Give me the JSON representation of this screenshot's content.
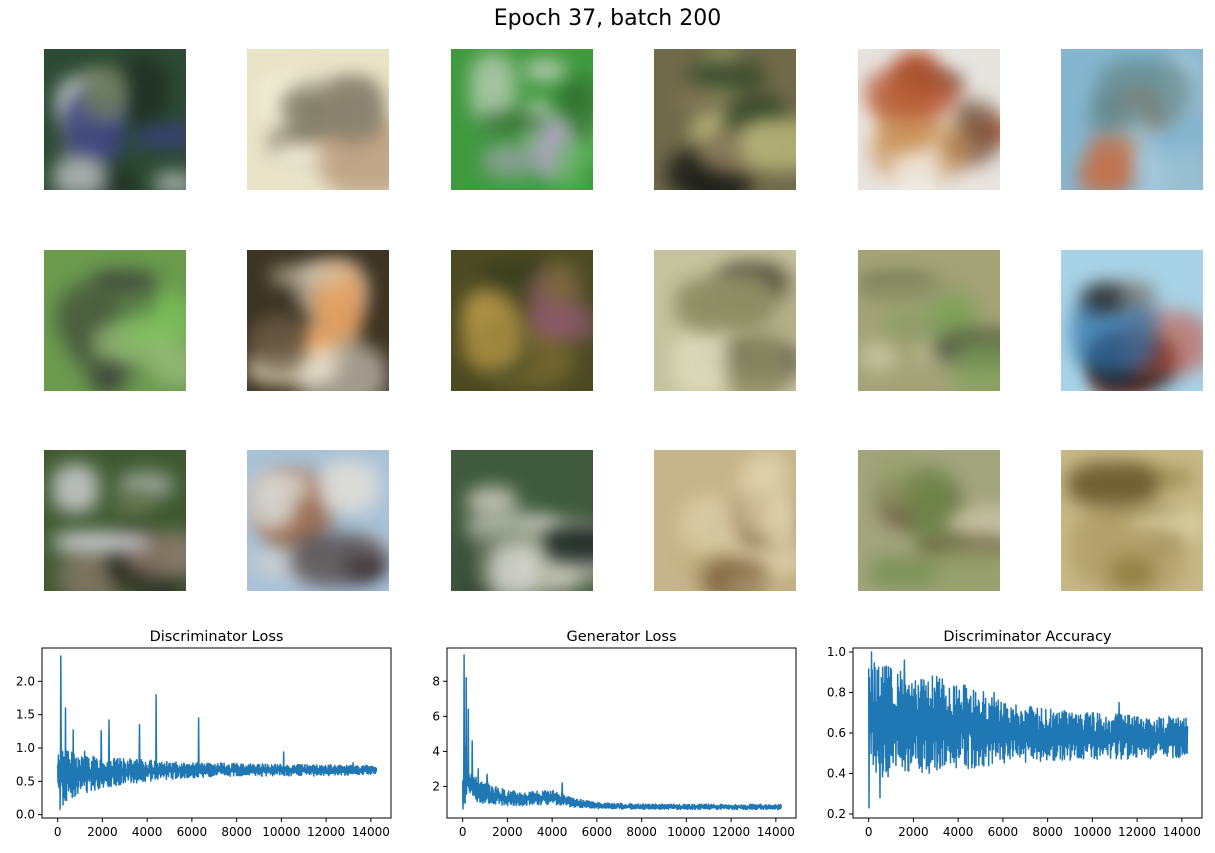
{
  "figure": {
    "suptitle": "Epoch 37, batch 200"
  },
  "sample_grid": {
    "rows": 3,
    "cols": 6,
    "samples": [
      {
        "bg": "#2d4a34",
        "colors": [
          "#e8e8ec",
          "#3b3f8a",
          "#1e2a22",
          "#6c7a5a"
        ]
      },
      {
        "bg": "#e9e4c8",
        "colors": [
          "#8a8270",
          "#f4f1dc",
          "#b89a7c",
          "#6b6a55"
        ]
      },
      {
        "bg": "#3f9a3e",
        "colors": [
          "#e9dfe4",
          "#5fb85a",
          "#2b5a2a",
          "#b3a4c4"
        ]
      },
      {
        "bg": "#6f6a4a",
        "colors": [
          "#b7b57a",
          "#1b1d18",
          "#3a4a2c",
          "#8c7d5e"
        ]
      },
      {
        "bg": "#e7e3de",
        "colors": [
          "#b4522e",
          "#6e4e36",
          "#f2efe9",
          "#c58a4a"
        ]
      },
      {
        "bg": "#86b6cf",
        "colors": [
          "#c96a3c",
          "#9fc3d0",
          "#5d7f7c",
          "#b0cde0"
        ]
      },
      {
        "bg": "#6b9a4e",
        "colors": [
          "#3a3d3a",
          "#7dc25a",
          "#4a5c3e",
          "#98b97a"
        ]
      },
      {
        "bg": "#3d3424",
        "colors": [
          "#d9cfb4",
          "#f1ece0",
          "#6a5a44",
          "#f0a45e"
        ]
      },
      {
        "bg": "#4c4a22",
        "colors": [
          "#7a6d34",
          "#2f3a1e",
          "#c1a04a",
          "#8c5a6c"
        ]
      },
      {
        "bg": "#c4c39d",
        "colors": [
          "#8d8b62",
          "#e0ddc0",
          "#3f3c2c",
          "#a9a87f"
        ]
      },
      {
        "bg": "#a3a377",
        "colors": [
          "#7ea25a",
          "#c8c6a2",
          "#4d563a",
          "#949a6c"
        ]
      },
      {
        "bg": "#a8d3e6",
        "colors": [
          "#1e1d1c",
          "#c74a35",
          "#2e6fa6",
          "#7b6a5a"
        ]
      },
      {
        "bg": "#3f5a32",
        "colors": [
          "#d7d6dc",
          "#6c7a52",
          "#2a2a22",
          "#8b7a6c"
        ]
      },
      {
        "bg": "#a8c1d6",
        "colors": [
          "#d6d4d0",
          "#9a6a4c",
          "#3a3030",
          "#e4e0d8"
        ]
      },
      {
        "bg": "#3f5a3c",
        "colors": [
          "#d9d4c8",
          "#1f2a26",
          "#7a8a6a",
          "#e6e2e0"
        ]
      },
      {
        "bg": "#c6b48a",
        "colors": [
          "#e4d9b4",
          "#7a5e3c",
          "#b7a878",
          "#d9cfa8"
        ]
      },
      {
        "bg": "#a2a47e",
        "colors": [
          "#6c8a48",
          "#c7c3a4",
          "#5e4a34",
          "#93a068"
        ]
      },
      {
        "bg": "#c7b887",
        "colors": [
          "#8a7a3c",
          "#d8cfa0",
          "#6a5a2e",
          "#b2a06a"
        ]
      }
    ]
  },
  "chart_data": [
    {
      "type": "line",
      "title": "Discriminator Loss",
      "xlabel": "",
      "ylabel": "",
      "xlim": [
        -700,
        14900
      ],
      "ylim": [
        -0.05,
        2.5
      ],
      "xticks": [
        0,
        2000,
        4000,
        6000,
        8000,
        10000,
        12000,
        14000
      ],
      "xtick_labels": [
        "0",
        "2000",
        "4000",
        "6000",
        "8000",
        "10000",
        "12000",
        "14000"
      ],
      "yticks": [
        0.0,
        0.5,
        1.0,
        1.5,
        2.0
      ],
      "ytick_labels": [
        "0.0",
        "0.5",
        "1.0",
        "1.5",
        "2.0"
      ],
      "series_color": "#1f77b4",
      "envelope": {
        "x": [
          0,
          100,
          300,
          600,
          1000,
          1500,
          2000,
          3000,
          4000,
          5000,
          6000,
          8000,
          10000,
          12000,
          14250
        ],
        "low": [
          0.4,
          0.05,
          0.15,
          0.25,
          0.3,
          0.35,
          0.4,
          0.45,
          0.5,
          0.53,
          0.55,
          0.57,
          0.58,
          0.58,
          0.6
        ],
        "high": [
          0.8,
          1.2,
          1.0,
          0.95,
          0.9,
          0.88,
          0.86,
          0.84,
          0.82,
          0.8,
          0.78,
          0.77,
          0.76,
          0.75,
          0.74
        ]
      },
      "spikes": [
        [
          150,
          2.38
        ],
        [
          350,
          1.6
        ],
        [
          700,
          1.27
        ],
        [
          1200,
          0.95
        ],
        [
          1950,
          1.26
        ],
        [
          2300,
          1.42
        ],
        [
          3650,
          1.35
        ],
        [
          4400,
          1.8
        ],
        [
          6300,
          1.45
        ],
        [
          10100,
          0.94
        ],
        [
          13200,
          0.78
        ]
      ]
    },
    {
      "type": "line",
      "title": "Generator Loss",
      "xlabel": "",
      "ylabel": "",
      "xlim": [
        -700,
        14900
      ],
      "ylim": [
        0.2,
        9.9
      ],
      "xticks": [
        0,
        2000,
        4000,
        6000,
        8000,
        10000,
        12000,
        14000
      ],
      "xtick_labels": [
        "0",
        "2000",
        "4000",
        "6000",
        "8000",
        "10000",
        "12000",
        "14000"
      ],
      "yticks": [
        2,
        4,
        6,
        8
      ],
      "ytick_labels": [
        "2",
        "4",
        "6",
        "8"
      ],
      "series_color": "#1f77b4",
      "envelope": {
        "x": [
          0,
          100,
          300,
          600,
          1000,
          1500,
          2000,
          3000,
          4000,
          5000,
          6000,
          8000,
          10000,
          12000,
          14250
        ],
        "low": [
          0.7,
          0.8,
          1.0,
          1.1,
          1.0,
          0.95,
          0.9,
          0.9,
          0.95,
          0.8,
          0.72,
          0.7,
          0.68,
          0.68,
          0.68
        ],
        "high": [
          2.5,
          5.0,
          3.5,
          2.6,
          2.2,
          2.0,
          1.8,
          1.7,
          1.8,
          1.3,
          1.1,
          1.0,
          1.0,
          0.98,
          0.98
        ]
      },
      "spikes": [
        [
          60,
          9.5
        ],
        [
          160,
          8.2
        ],
        [
          260,
          6.4
        ],
        [
          420,
          4.6
        ],
        [
          700,
          3.0
        ],
        [
          1100,
          2.7
        ],
        [
          4450,
          2.2
        ]
      ]
    },
    {
      "type": "line",
      "title": "Discriminator Accuracy",
      "xlabel": "",
      "ylabel": "",
      "xlim": [
        -700,
        14900
      ],
      "ylim": [
        0.18,
        1.02
      ],
      "xticks": [
        0,
        2000,
        4000,
        6000,
        8000,
        10000,
        12000,
        14000
      ],
      "xtick_labels": [
        "0",
        "2000",
        "4000",
        "6000",
        "8000",
        "10000",
        "12000",
        "14000"
      ],
      "yticks": [
        0.2,
        0.4,
        0.6,
        0.8,
        1.0
      ],
      "ytick_labels": [
        "0.2",
        "0.4",
        "0.6",
        "0.8",
        "1.0"
      ],
      "series_color": "#1f77b4",
      "envelope": {
        "x": [
          0,
          100,
          300,
          600,
          1000,
          1500,
          2000,
          3000,
          4000,
          5000,
          6000,
          8000,
          10000,
          12000,
          14250
        ],
        "low": [
          0.35,
          0.45,
          0.4,
          0.38,
          0.36,
          0.38,
          0.4,
          0.4,
          0.42,
          0.43,
          0.45,
          0.46,
          0.47,
          0.47,
          0.48
        ],
        "high": [
          0.98,
          1.0,
          0.98,
          0.95,
          0.93,
          0.92,
          0.9,
          0.88,
          0.85,
          0.82,
          0.75,
          0.72,
          0.7,
          0.69,
          0.68
        ]
      },
      "spikes": [
        [
          20,
          0.23
        ],
        [
          120,
          1.0
        ],
        [
          500,
          0.28
        ],
        [
          1600,
          0.96
        ],
        [
          5600,
          0.8
        ],
        [
          11200,
          0.75
        ]
      ]
    }
  ]
}
